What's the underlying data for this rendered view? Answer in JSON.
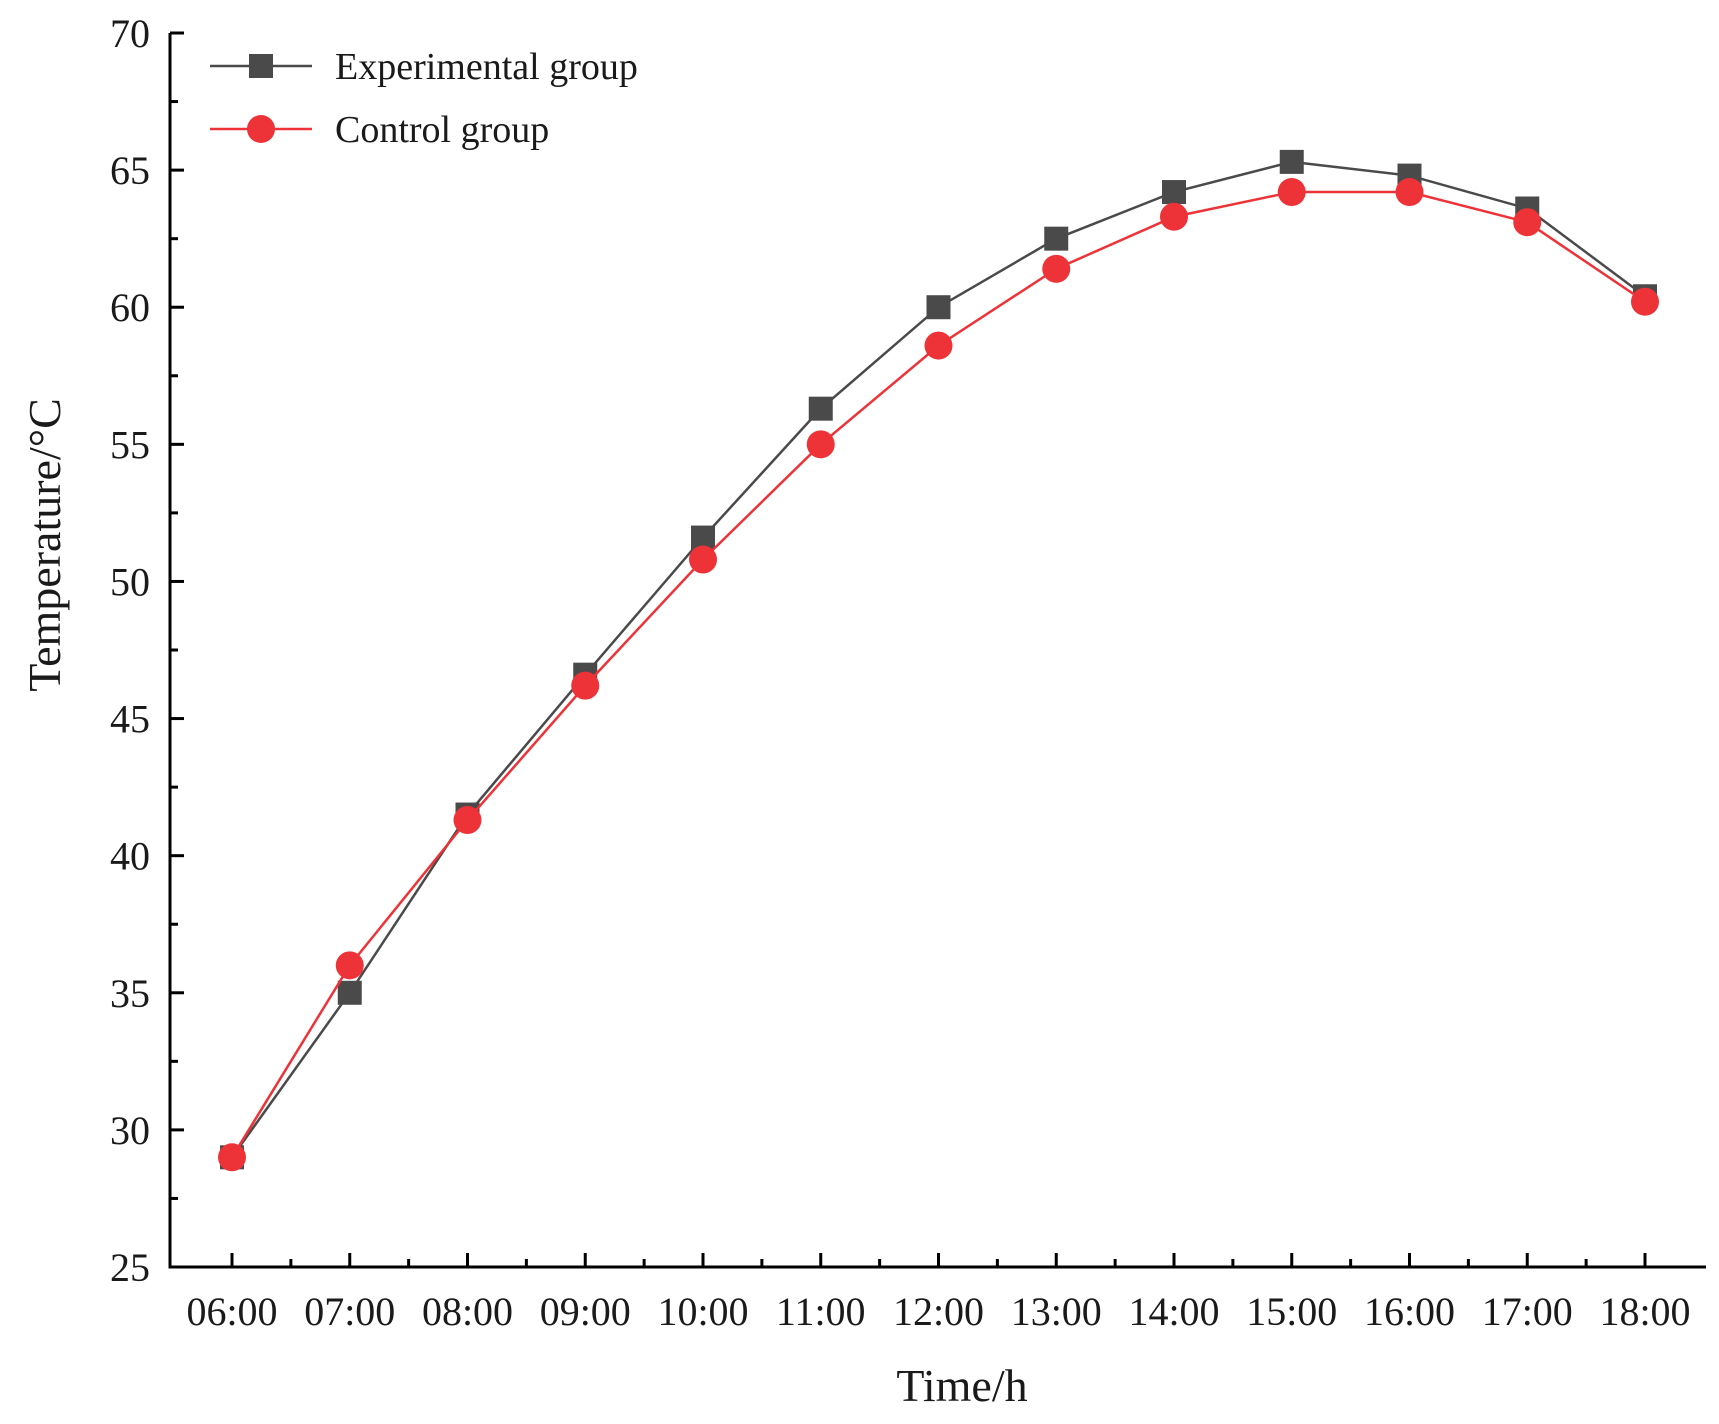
{
  "chart_data": {
    "type": "line",
    "title": "",
    "xlabel": "Time/h",
    "ylabel": "Temperature/°C",
    "categories": [
      "06:00",
      "07:00",
      "08:00",
      "09:00",
      "10:00",
      "11:00",
      "12:00",
      "13:00",
      "14:00",
      "15:00",
      "16:00",
      "17:00",
      "18:00"
    ],
    "ylim": [
      25,
      70
    ],
    "yticks": [
      "25",
      "30",
      "35",
      "40",
      "45",
      "50",
      "55",
      "60",
      "65",
      "70"
    ],
    "legend_position": "top-left",
    "grid": false,
    "series": [
      {
        "name": "Experimental group",
        "marker": "square",
        "color": "#4a4a4a",
        "values": [
          29.0,
          35.0,
          41.5,
          46.6,
          51.6,
          56.3,
          60.0,
          62.5,
          64.2,
          65.3,
          64.8,
          63.6,
          60.4
        ]
      },
      {
        "name": "Control group",
        "marker": "circle",
        "color": "#ee3338",
        "values": [
          29.0,
          36.0,
          41.3,
          46.2,
          50.8,
          55.0,
          58.6,
          61.4,
          63.3,
          64.2,
          64.2,
          63.1,
          60.2
        ]
      }
    ]
  }
}
